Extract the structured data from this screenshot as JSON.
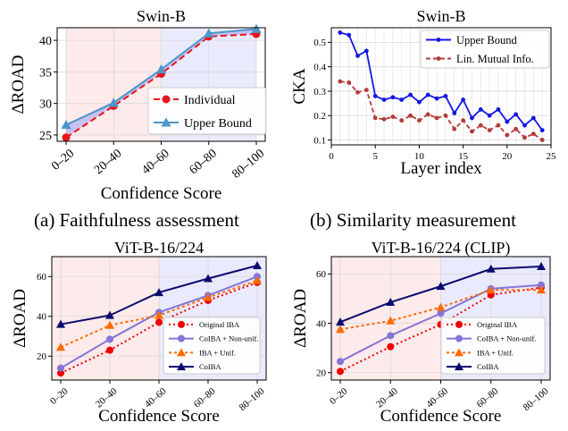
{
  "captions": [
    "(a) Faithfulness assessment",
    "(b) Similarity measurement"
  ],
  "chart_data": [
    {
      "type": "line",
      "title": "Swin-B",
      "xlabel": "Confidence Score",
      "ylabel": "ΔROAD",
      "categories": [
        "0–20",
        "20–40",
        "40–60",
        "60–80",
        "80–100"
      ],
      "ylim": [
        24,
        42
      ],
      "yticks": [
        25,
        30,
        35,
        40
      ],
      "grid": true,
      "legend": "center-right",
      "background_bands": [
        {
          "from": 0,
          "to": 2,
          "color": "#fdeaea"
        },
        {
          "from": 2,
          "to": 4,
          "color": "#eaeafd"
        }
      ],
      "fill_between": {
        "series": [
          0,
          1
        ],
        "color": "#b3b3f0"
      },
      "series": [
        {
          "name": "Individual",
          "values": [
            24.6,
            29.6,
            34.7,
            40.6,
            41.0
          ],
          "color": "#e8141b",
          "marker": "circle",
          "dash": "7,4"
        },
        {
          "name": "Upper Bound",
          "values": [
            26.6,
            30.1,
            35.4,
            41.1,
            41.8
          ],
          "color": "#4e96c8",
          "marker": "triangle",
          "dash": ""
        }
      ]
    },
    {
      "type": "line",
      "title": "Swin-B",
      "xlabel": "Layer index",
      "ylabel": "CKA",
      "x": [
        1,
        2,
        3,
        4,
        5,
        6,
        7,
        8,
        9,
        10,
        11,
        12,
        13,
        14,
        15,
        16,
        17,
        18,
        19,
        20,
        21,
        22,
        23,
        24
      ],
      "xticks": [
        0,
        5,
        10,
        15,
        20,
        25
      ],
      "xlim": [
        0,
        25
      ],
      "ylim": [
        0.08,
        0.56
      ],
      "yticks": [
        0.1,
        0.2,
        0.3,
        0.4,
        0.5
      ],
      "grid": true,
      "legend": "top-right",
      "series": [
        {
          "name": "Upper Bound",
          "values": [
            0.54,
            0.53,
            0.445,
            0.465,
            0.28,
            0.265,
            0.275,
            0.265,
            0.285,
            0.255,
            0.285,
            0.27,
            0.28,
            0.21,
            0.265,
            0.19,
            0.225,
            0.2,
            0.225,
            0.175,
            0.205,
            0.16,
            0.19,
            0.14
          ],
          "color": "#1515e6",
          "marker": "circle",
          "dash": ""
        },
        {
          "name": "Lin. Mutual Info.",
          "values": [
            0.34,
            0.335,
            0.295,
            0.305,
            0.19,
            0.185,
            0.195,
            0.18,
            0.2,
            0.18,
            0.205,
            0.19,
            0.2,
            0.145,
            0.18,
            0.135,
            0.16,
            0.14,
            0.16,
            0.12,
            0.145,
            0.11,
            0.125,
            0.1
          ],
          "color": "#b33a3a",
          "marker": "circle",
          "dash": "5,3"
        }
      ]
    },
    {
      "type": "line",
      "title": "ViT-B-16/224",
      "xlabel": "Confidence Score",
      "ylabel": "ΔROAD",
      "categories": [
        "0–20",
        "20–40",
        "40–60",
        "60–80",
        "80–100"
      ],
      "ylim": [
        8,
        70
      ],
      "yticks": [
        20,
        40,
        60
      ],
      "grid": true,
      "legend": "bottom-right",
      "background_bands": [
        {
          "from": -0.2,
          "to": 2,
          "color": "#fdeaea"
        },
        {
          "from": 2,
          "to": 4.2,
          "color": "#eaeafd"
        }
      ],
      "series": [
        {
          "name": "Original IBA",
          "values": [
            11.5,
            23,
            37,
            48,
            57
          ],
          "color": "#ee0000",
          "marker": "circle",
          "dash": "2,3"
        },
        {
          "name": "CoIBA + Non-unif.",
          "values": [
            14,
            28.5,
            42,
            50.5,
            60
          ],
          "color": "#8476d6",
          "marker": "circle",
          "dash": ""
        },
        {
          "name": "IBA + Unif.",
          "values": [
            24.5,
            35.5,
            40.5,
            49.5,
            58
          ],
          "color": "#ff6a00",
          "marker": "triangle",
          "dash": "3,3"
        },
        {
          "name": "CoIBA",
          "values": [
            36,
            40.5,
            52,
            59,
            65.5
          ],
          "color": "#0b0b6e",
          "marker": "triangle",
          "dash": ""
        }
      ]
    },
    {
      "type": "line",
      "title": "ViT-B-16/224 (CLIP)",
      "xlabel": "Confidence Score",
      "ylabel": "ΔROAD",
      "categories": [
        "0–20",
        "20–40",
        "40–60",
        "60–80",
        "80–100"
      ],
      "ylim": [
        17,
        67
      ],
      "yticks": [
        20,
        40,
        60
      ],
      "grid": true,
      "legend": "bottom-right",
      "background_bands": [
        {
          "from": -0.2,
          "to": 2,
          "color": "#fdeaea"
        },
        {
          "from": 2,
          "to": 4.2,
          "color": "#eaeafd"
        }
      ],
      "series": [
        {
          "name": "Original IBA",
          "values": [
            20.5,
            30.5,
            39.5,
            51.5,
            54.5
          ],
          "color": "#ee0000",
          "marker": "circle",
          "dash": "2,3"
        },
        {
          "name": "CoIBA + Non-unif.",
          "values": [
            24.5,
            35,
            44,
            54,
            55.5
          ],
          "color": "#8476d6",
          "marker": "circle",
          "dash": ""
        },
        {
          "name": "IBA + Unif.",
          "values": [
            37.5,
            41,
            46.5,
            53.5,
            53.5
          ],
          "color": "#ff6a00",
          "marker": "triangle",
          "dash": "3,3"
        },
        {
          "name": "CoIBA",
          "values": [
            40.5,
            48.5,
            55,
            62,
            63
          ],
          "color": "#0b0b6e",
          "marker": "triangle",
          "dash": ""
        }
      ]
    }
  ]
}
